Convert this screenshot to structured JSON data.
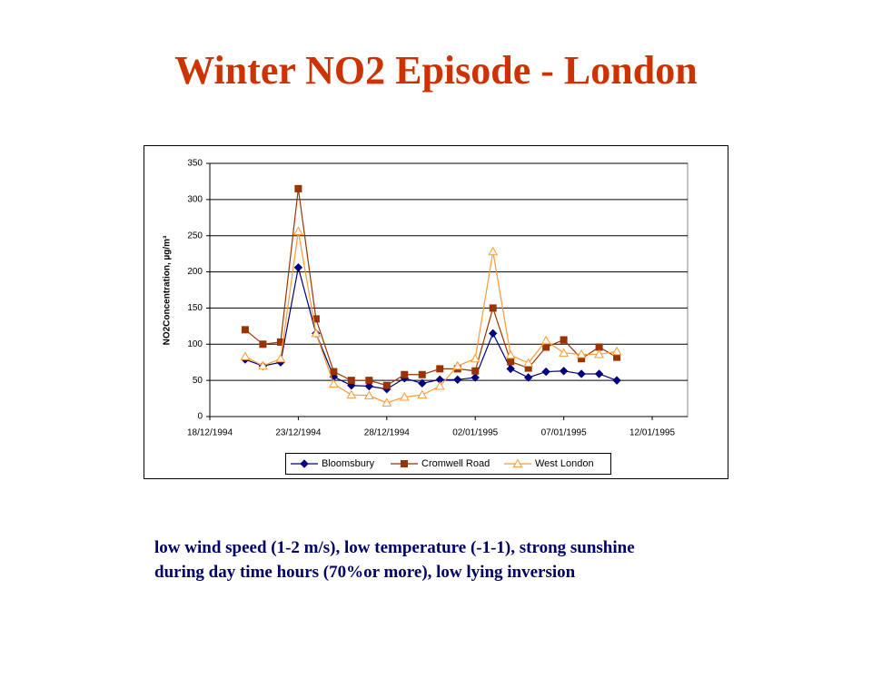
{
  "title": "Winter NO2 Episode - London",
  "chart_data": {
    "type": "line",
    "y_label": "NO2Concentration,  µg/m³",
    "x": [
      "1994-12-20",
      "1994-12-21",
      "1994-12-22",
      "1994-12-23",
      "1994-12-24",
      "1994-12-25",
      "1994-12-26",
      "1994-12-27",
      "1994-12-28",
      "1994-12-29",
      "1994-12-30",
      "1994-12-31",
      "1995-01-01",
      "1995-01-02",
      "1995-01-03",
      "1995-01-04",
      "1995-01-05",
      "1995-01-06",
      "1995-01-07",
      "1995-01-08",
      "1995-01-09",
      "1995-01-10"
    ],
    "series": [
      {
        "name": "Bloomsbury",
        "color": "#000080",
        "marker": "diamond",
        "values": [
          79,
          70,
          75,
          206,
          115,
          55,
          43,
          42,
          38,
          53,
          46,
          51,
          51,
          54,
          115,
          66,
          54,
          62,
          63,
          59,
          59,
          50
        ]
      },
      {
        "name": "Cromwell Road",
        "color": "#993300",
        "marker": "square",
        "values": [
          120,
          100,
          103,
          315,
          135,
          62,
          50,
          50,
          43,
          58,
          58,
          66,
          66,
          63,
          150,
          76,
          67,
          96,
          106,
          80,
          96,
          82
        ]
      },
      {
        "name": "West London",
        "color": "#ff9933",
        "marker": "triangle",
        "values": [
          83,
          70,
          80,
          256,
          115,
          45,
          30,
          29,
          19,
          27,
          30,
          42,
          70,
          80,
          228,
          85,
          74,
          105,
          88,
          86,
          86,
          90
        ]
      }
    ],
    "xlim": [
      "1994-12-18",
      "1995-01-14"
    ],
    "xticks": [
      {
        "value": "1994-12-18",
        "label": "18/12/1994"
      },
      {
        "value": "1994-12-23",
        "label": "23/12/1994"
      },
      {
        "value": "1994-12-28",
        "label": "28/12/1994"
      },
      {
        "value": "1995-01-02",
        "label": "02/01/1995"
      },
      {
        "value": "1995-01-07",
        "label": "07/01/1995"
      },
      {
        "value": "1995-01-12",
        "label": "12/01/1995"
      }
    ],
    "ylim": [
      0,
      350
    ],
    "yticks": [
      0,
      50,
      100,
      150,
      200,
      250,
      300,
      350
    ],
    "grid": true,
    "legend": "bottom"
  },
  "notes": [
    "low wind speed (1-2 m/s), low temperature (-1-1), strong sunshine",
    "during day time hours (70%or more), low lying inversion"
  ]
}
